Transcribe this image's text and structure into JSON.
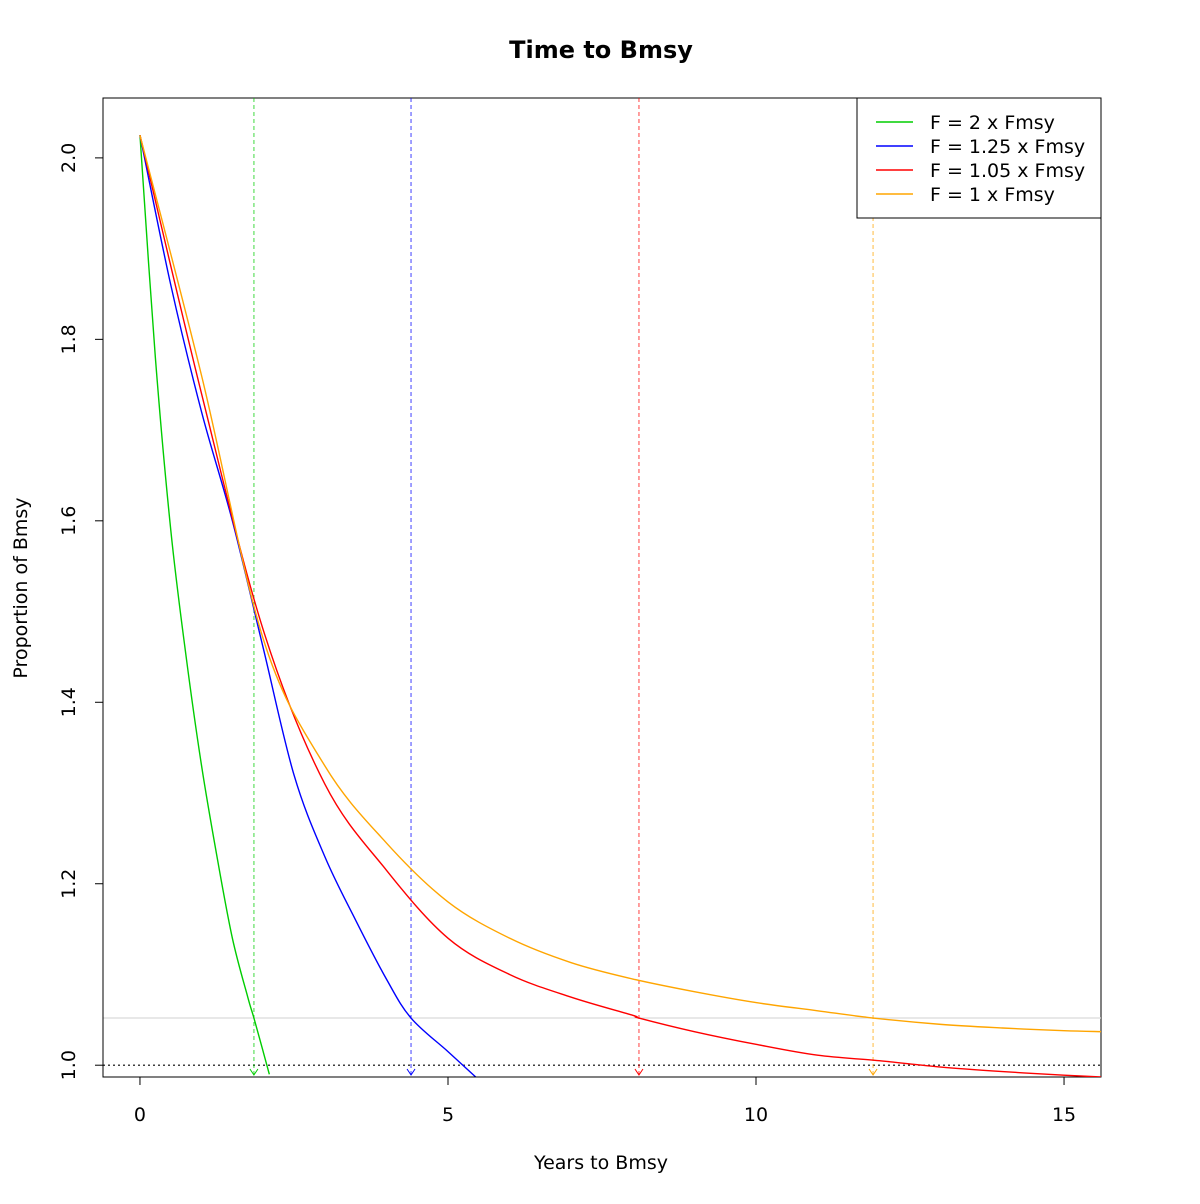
{
  "chart_data": {
    "type": "line",
    "title": "Time to Bmsy",
    "xlabel": "Years to Bmsy",
    "ylabel": "Proportion of Bmsy",
    "xlim": [
      -0.6,
      15.6
    ],
    "ylim": [
      0.987,
      2.066
    ],
    "x_ticks": [
      0,
      5,
      10,
      15
    ],
    "y_ticks": [
      1.0,
      1.2,
      1.4,
      1.6,
      1.8,
      2.0
    ],
    "x_tick_labels": [
      "0",
      "5",
      "10",
      "15"
    ],
    "y_tick_labels": [
      "1.0",
      "1.2",
      "1.4",
      "1.6",
      "1.8",
      "2.0"
    ],
    "legend_position": "top-right",
    "grid": false,
    "series": [
      {
        "name": "F = 2 x Fmsy",
        "color": "#00cd00",
        "x": [
          0,
          0.25,
          0.5,
          0.75,
          1.0,
          1.25,
          1.5,
          1.75,
          1.85,
          2.0,
          2.1
        ],
        "y": [
          2.025,
          1.78,
          1.59,
          1.45,
          1.33,
          1.23,
          1.14,
          1.075,
          1.052,
          1.015,
          0.99
        ],
        "marker_x": 1.85
      },
      {
        "name": "F = 1.25 x Fmsy",
        "color": "#0000ff",
        "x": [
          0,
          0.5,
          1.0,
          1.5,
          2.0,
          2.5,
          3.0,
          3.5,
          4.0,
          4.4,
          5.0,
          5.45
        ],
        "y": [
          2.025,
          1.86,
          1.72,
          1.6,
          1.46,
          1.32,
          1.23,
          1.16,
          1.095,
          1.052,
          1.015,
          0.987
        ],
        "marker_x": 4.4
      },
      {
        "name": "F = 1.05 x Fmsy",
        "color": "#ff0000",
        "x": [
          0,
          1,
          2,
          3,
          4,
          5,
          6,
          7,
          8,
          8.1,
          9,
          10,
          11,
          12,
          13,
          14,
          15,
          15.6
        ],
        "y": [
          2.025,
          1.74,
          1.48,
          1.31,
          1.215,
          1.14,
          1.1,
          1.075,
          1.055,
          1.052,
          1.037,
          1.023,
          1.011,
          1.005,
          0.998,
          0.993,
          0.989,
          0.987
        ],
        "marker_x": 8.1
      },
      {
        "name": "F = 1 x Fmsy",
        "color": "#ffa500",
        "x": [
          0,
          1,
          2,
          3,
          4,
          5,
          6,
          7,
          8,
          9,
          10,
          11,
          11.9,
          13,
          14,
          15,
          15.6
        ],
        "y": [
          2.025,
          1.76,
          1.47,
          1.33,
          1.245,
          1.18,
          1.14,
          1.113,
          1.095,
          1.081,
          1.069,
          1.06,
          1.052,
          1.045,
          1.041,
          1.038,
          1.037
        ],
        "marker_x": 11.9
      }
    ],
    "reference_lines": [
      {
        "y": 1.0,
        "color": "#000000",
        "style": "dotted"
      },
      {
        "y": 1.052,
        "color": "#d9d9d9",
        "style": "solid"
      }
    ]
  }
}
